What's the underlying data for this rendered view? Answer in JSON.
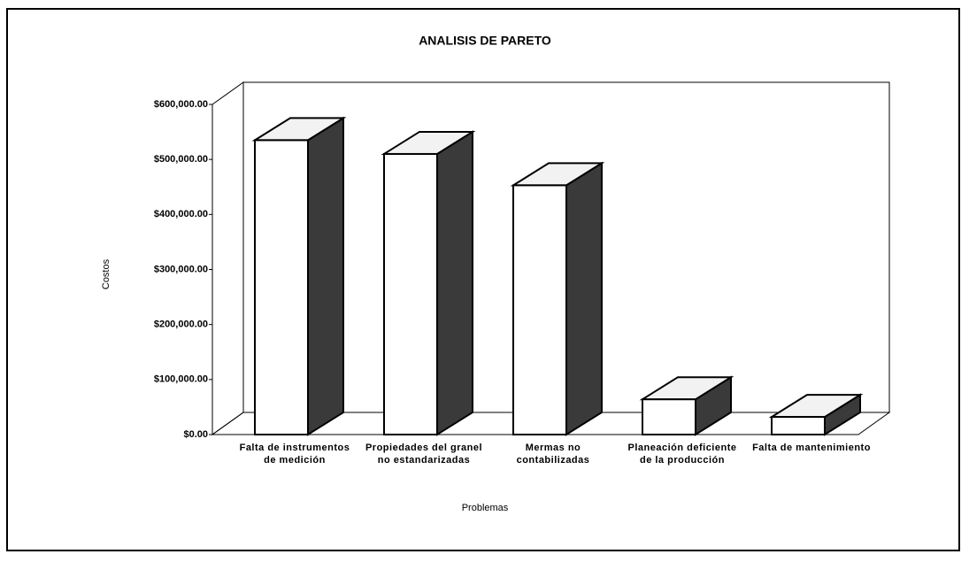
{
  "chart_data": {
    "type": "bar3d",
    "title": "ANALISIS DE PARETO",
    "x_label": "Problemas",
    "y_label": "Costos",
    "categories": [
      "Falta de instrumentos de medición",
      "Propiedades del granel no estandarizadas",
      "Mermas no contabilizadas",
      "Planeación deficiente de la producción",
      "Falta de mantenimiento"
    ],
    "values": [
      535000,
      510000,
      453000,
      64000,
      32000
    ],
    "ylim": [
      0,
      600000
    ],
    "yticks": [
      {
        "value": 0,
        "label": "$0.00"
      },
      {
        "value": 100000,
        "label": "$100,000.00"
      },
      {
        "value": 200000,
        "label": "$200,000.00"
      },
      {
        "value": 300000,
        "label": "$300,000.00"
      },
      {
        "value": 400000,
        "label": "$400,000.00"
      },
      {
        "value": 500000,
        "label": "$500,000.00"
      },
      {
        "value": 600000,
        "label": "$600,000.00"
      }
    ],
    "grid": false
  }
}
